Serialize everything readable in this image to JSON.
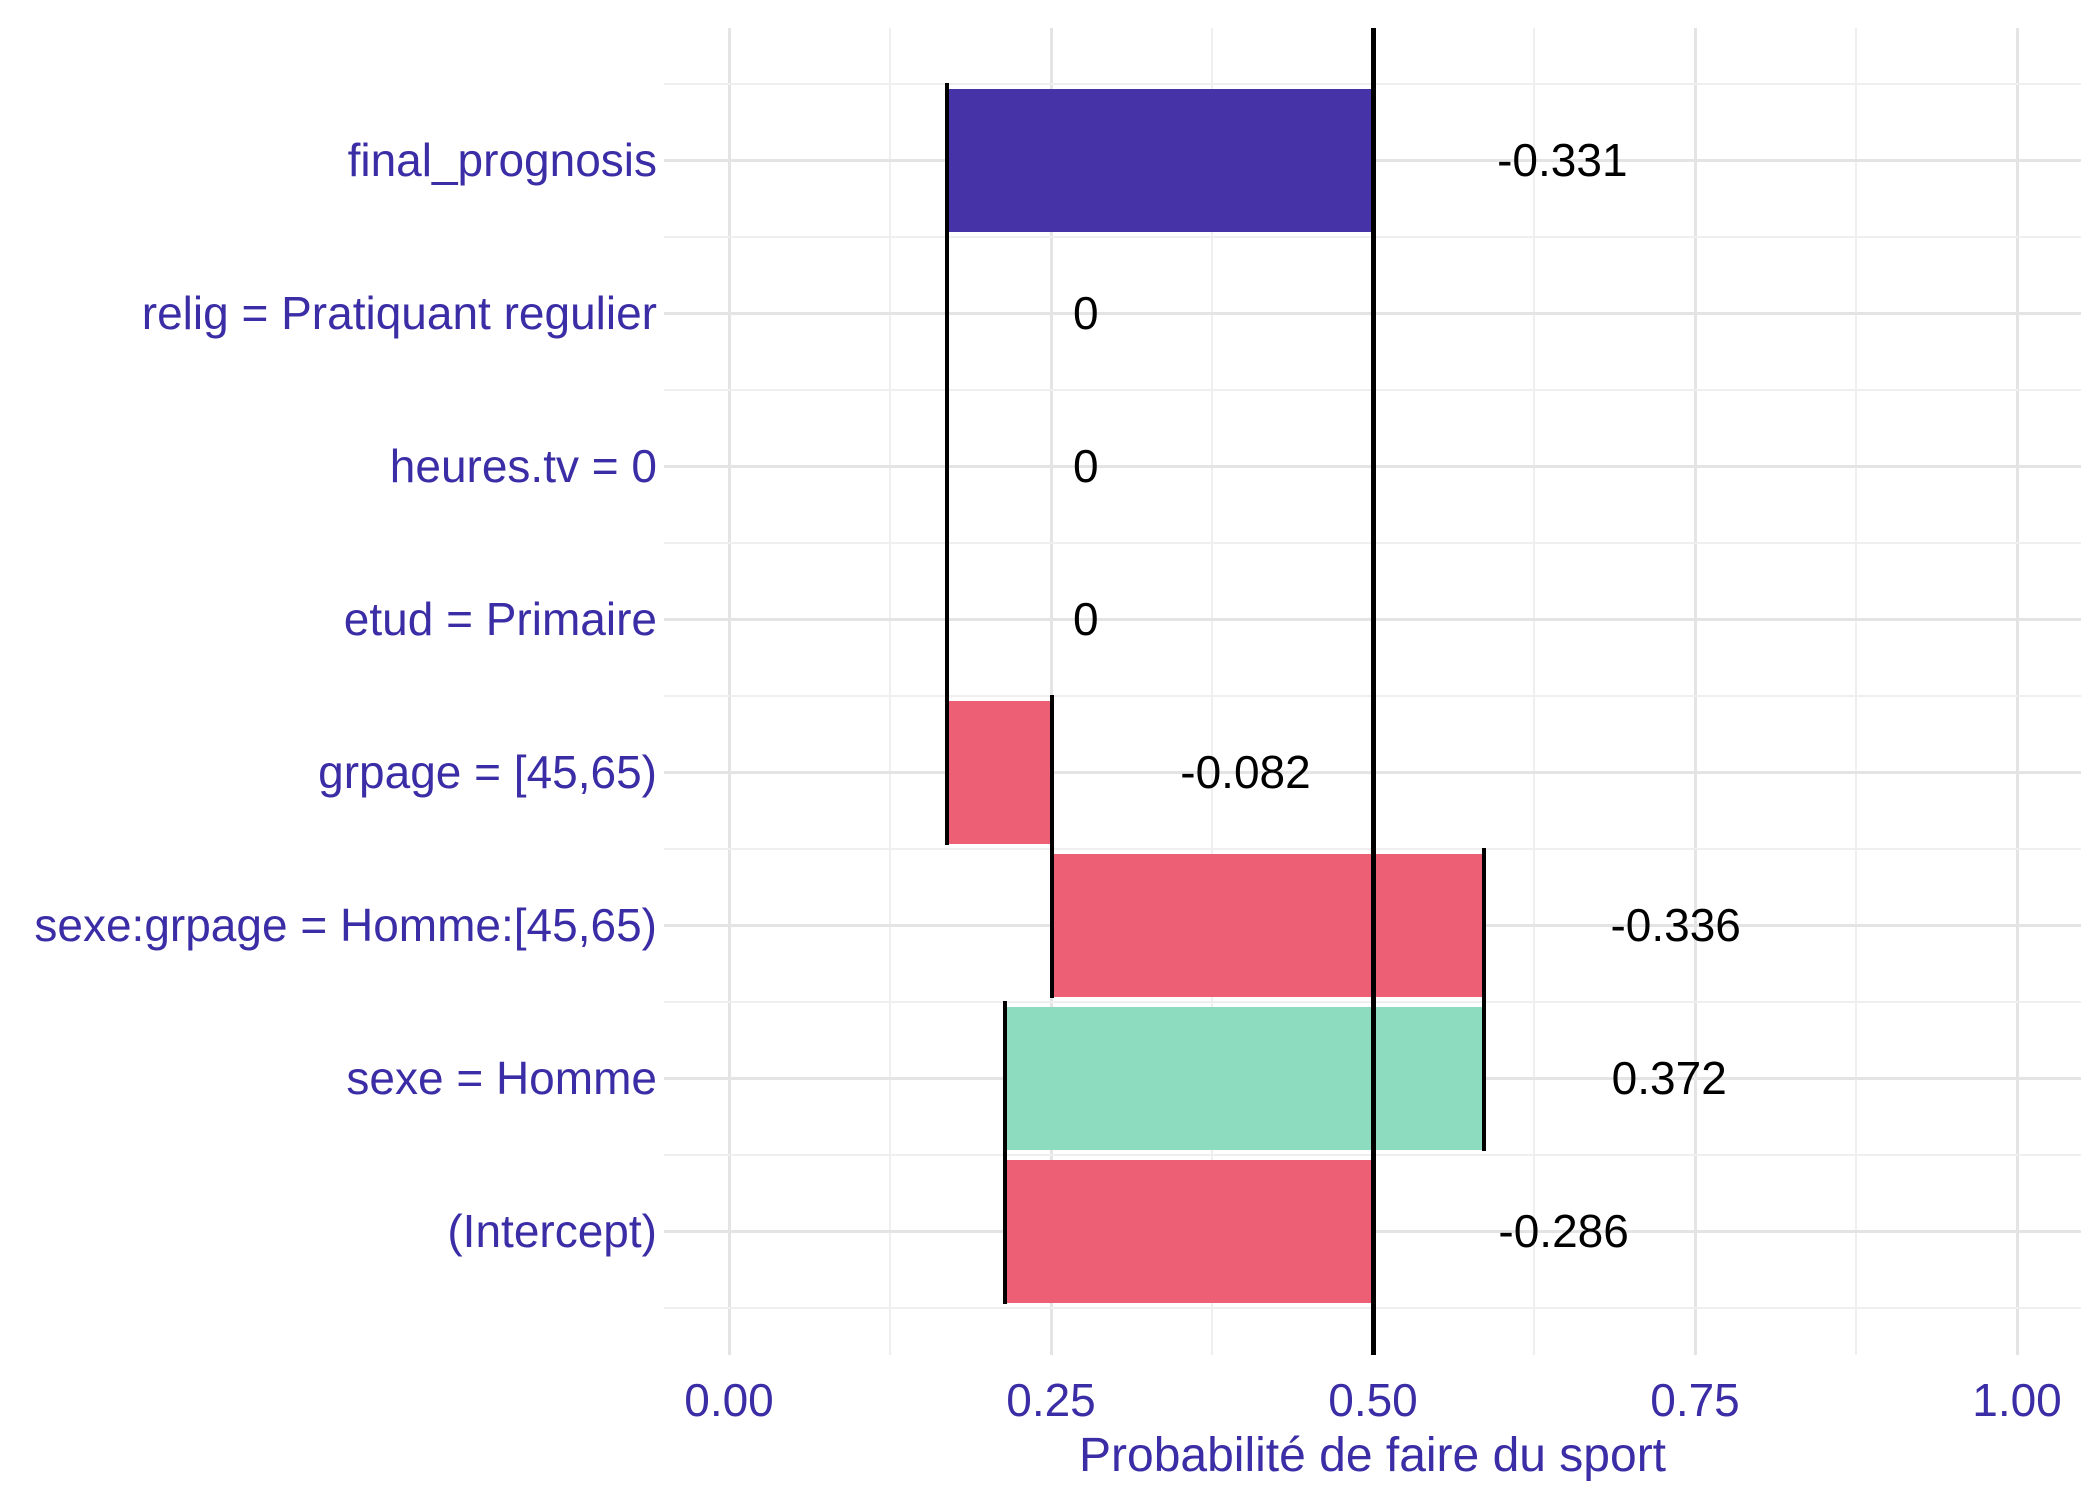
{
  "chart_data": {
    "type": "bar",
    "variant": "breakdown-waterfall",
    "orientation": "horizontal",
    "title": "",
    "xlabel": "Probabilité de faire du sport",
    "ylabel": "",
    "xlim": [
      0,
      1
    ],
    "grid": true,
    "legend": false,
    "baseline": 0.5,
    "final_prognosis_value": 0.169,
    "x_ticks": [
      {
        "value": 0.0,
        "label": "0.00"
      },
      {
        "value": 0.25,
        "label": "0.25"
      },
      {
        "value": 0.5,
        "label": "0.50"
      },
      {
        "value": 0.75,
        "label": "0.75"
      },
      {
        "value": 1.0,
        "label": "1.00"
      }
    ],
    "x_minor_ticks": [
      0.125,
      0.375,
      0.625,
      0.875
    ],
    "categories": [
      "final_prognosis",
      "relig = Pratiquant regulier",
      "heures.tv = 0",
      "etud = Primaire",
      "grpage = [45,65)",
      "sexe:grpage = Homme:[45,65)",
      "sexe = Homme",
      "(Intercept)"
    ],
    "values": [
      -0.331,
      0,
      0,
      0,
      -0.082,
      -0.336,
      0.372,
      -0.286
    ],
    "rows": [
      {
        "label": "final_prognosis",
        "contribution": -0.331,
        "value_label": "-0.331",
        "bar_start": 0.169,
        "bar_end": 0.5,
        "fill": "final",
        "value_label_x": 0.647
      },
      {
        "label": "relig = Pratiquant regulier",
        "contribution": 0,
        "value_label": "0",
        "bar_start": 0.169,
        "bar_end": 0.169,
        "fill": null,
        "value_label_x": 0.277
      },
      {
        "label": "heures.tv = 0",
        "contribution": 0,
        "value_label": "0",
        "bar_start": 0.169,
        "bar_end": 0.169,
        "fill": null,
        "value_label_x": 0.277
      },
      {
        "label": "etud = Primaire",
        "contribution": 0,
        "value_label": "0",
        "bar_start": 0.169,
        "bar_end": 0.169,
        "fill": null,
        "value_label_x": 0.277
      },
      {
        "label": "grpage = [45,65)",
        "contribution": -0.082,
        "value_label": "-0.082",
        "bar_start": 0.169,
        "bar_end": 0.251,
        "fill": "negative",
        "value_label_x": 0.401
      },
      {
        "label": "sexe:grpage = Homme:[45,65)",
        "contribution": -0.336,
        "value_label": "-0.336",
        "bar_start": 0.251,
        "bar_end": 0.586,
        "fill": "negative",
        "value_label_x": 0.735
      },
      {
        "label": "sexe = Homme",
        "contribution": 0.372,
        "value_label": "0.372",
        "bar_start": 0.214,
        "bar_end": 0.586,
        "fill": "positive",
        "value_label_x": 0.73
      },
      {
        "label": "(Intercept)",
        "contribution": -0.286,
        "value_label": "-0.286",
        "bar_start": 0.214,
        "bar_end": 0.5,
        "fill": "negative",
        "value_label_x": 0.648
      }
    ],
    "connectors": [
      {
        "x": 0.169,
        "from_row": 0,
        "to_row": 4
      },
      {
        "x": 0.251,
        "from_row": 4,
        "to_row": 5
      },
      {
        "x": 0.586,
        "from_row": 5,
        "to_row": 6
      },
      {
        "x": 0.214,
        "from_row": 6,
        "to_row": 7
      }
    ],
    "colors": {
      "final": "#4733a8",
      "negative": "#ed5f74",
      "positive": "#8edcc0",
      "baseline_line": "#000000",
      "connector_line": "#000000",
      "axis_text": "#3a2da6",
      "value_text": "#000000",
      "grid_major": "#e4e4e4",
      "grid_minor": "#efefef",
      "panel_background": "#ffffff"
    }
  }
}
